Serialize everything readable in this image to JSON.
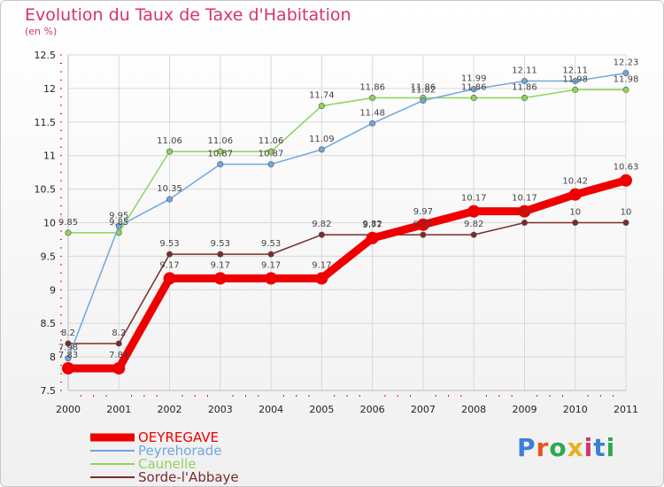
{
  "header": {
    "title": "Evolution du Taux de Taxe d'Habitation",
    "subtitle": "(en %)"
  },
  "logo": {
    "text": "Proxiti",
    "letter_colors": [
      "#3b7fd6",
      "#e8541e",
      "#2fa84f",
      "#e8b21e",
      "#d6336c",
      "#3b7fd6",
      "#2fa84f"
    ]
  },
  "colors": {
    "title": "#d6336c",
    "grid": "#d8d8d8",
    "axis_tick": "#e0003a"
  },
  "chart_data": {
    "type": "line",
    "title": "Evolution du Taux de Taxe d'Habitation",
    "subtitle": "(en %)",
    "xlabel": "",
    "ylabel": "(en %)",
    "x": [
      "2000",
      "2001",
      "2002",
      "2003",
      "2004",
      "2005",
      "2006",
      "2007",
      "2008",
      "2009",
      "2010",
      "2011"
    ],
    "ylim": [
      7.5,
      12.5
    ],
    "yticks": [
      "7.5",
      "8",
      "8.5",
      "9",
      "9.5",
      "10",
      "10.5",
      "11",
      "11.5",
      "12",
      "12.5"
    ],
    "grid": true,
    "legend_position": "bottom-left",
    "series": [
      {
        "name": "OEYREGAVE",
        "color": "#ee0000",
        "values": [
          7.83,
          7.83,
          9.17,
          9.17,
          9.17,
          9.17,
          9.77,
          9.97,
          10.17,
          10.17,
          10.42,
          10.63
        ],
        "labels": [
          "7.83",
          "7.83",
          "9.17",
          "9.17",
          "9.17",
          "9.17",
          "9.77",
          "9.97",
          "10.17",
          "10.17",
          "10.42",
          "10.63"
        ]
      },
      {
        "name": "Peyrehorade",
        "color": "#6fa8dc",
        "values": [
          7.98,
          9.95,
          10.35,
          10.87,
          10.87,
          11.09,
          11.48,
          11.82,
          11.99,
          12.11,
          12.11,
          12.23
        ],
        "labels": [
          "7.98",
          "9.95",
          "10.35",
          "10.87",
          "10.87",
          "11.09",
          "11.48",
          "11.82",
          "11.99",
          "12.11",
          "12.11",
          "12.23"
        ]
      },
      {
        "name": "Caunelle",
        "color": "#8fd45a",
        "values": [
          9.85,
          9.85,
          11.06,
          11.06,
          11.06,
          11.74,
          11.86,
          11.86,
          11.86,
          11.86,
          11.98,
          11.98
        ],
        "labels": [
          "9.85",
          "9.85",
          "11.06",
          "11.06",
          "11.06",
          "11.74",
          "11.86",
          "11.86",
          "11.86",
          "11.86",
          "11.98",
          "11.98"
        ]
      },
      {
        "name": "Sorde-l'Abbaye",
        "color": "#7b2c2c",
        "values": [
          8.2,
          8.2,
          9.53,
          9.53,
          9.53,
          9.82,
          9.82,
          9.82,
          9.82,
          10,
          10,
          10
        ],
        "labels": [
          "8.2",
          "8.2",
          "9.53",
          "9.53",
          "9.53",
          "9.82",
          "9.82",
          "9.82",
          "9.82",
          "10",
          "10",
          "10"
        ]
      }
    ]
  }
}
